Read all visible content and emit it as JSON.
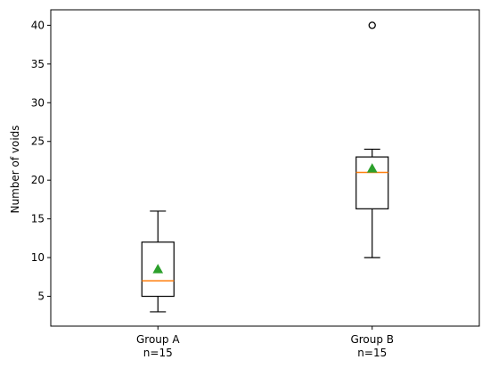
{
  "chart_data": {
    "type": "box",
    "ylabel": "Number of voids",
    "ylim": [
      1.15,
      42.0
    ],
    "y_ticks": [
      5,
      10,
      15,
      20,
      25,
      30,
      35,
      40
    ],
    "categories": [
      {
        "label_line1": "Group A",
        "label_line2": "n=15"
      },
      {
        "label_line1": "Group B",
        "label_line2": "n=15"
      }
    ],
    "boxes": [
      {
        "name": "Group A",
        "whisker_low": 3,
        "q1": 5,
        "median": 7,
        "q3": 12,
        "whisker_high": 16,
        "mean": 8.5,
        "outliers": []
      },
      {
        "name": "Group B",
        "whisker_low": 10,
        "q1": 16.3,
        "median": 21,
        "q3": 23,
        "whisker_high": 24,
        "mean": 21.5,
        "outliers": [
          40
        ]
      }
    ],
    "colors": {
      "median": "#ff7f0e",
      "mean": "#2ca02c",
      "box": "#000000"
    }
  }
}
